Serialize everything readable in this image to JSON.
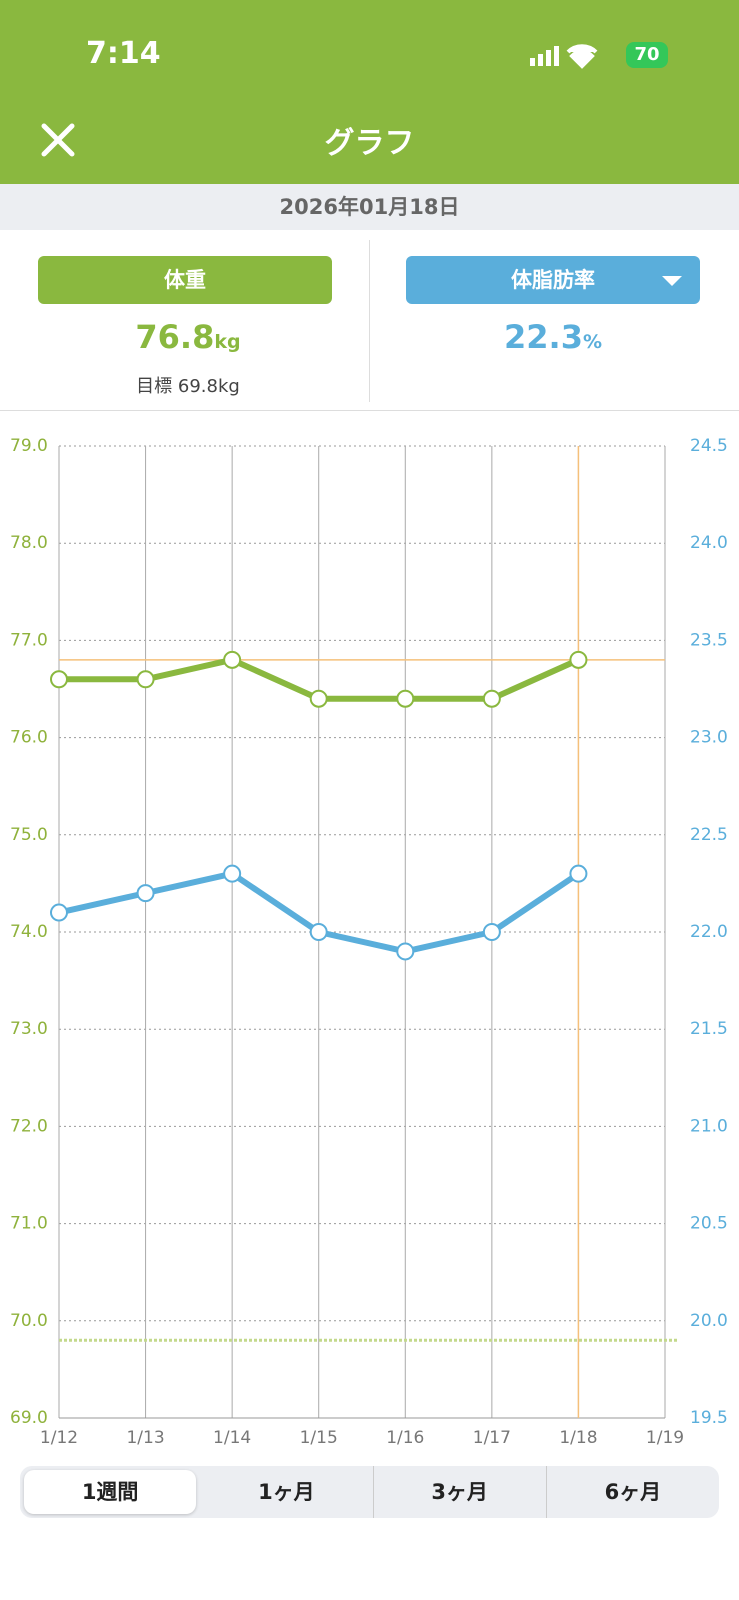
{
  "status_bar": {
    "time": "7:14",
    "battery": "70"
  },
  "header": {
    "title": "グラフ"
  },
  "date": "2026年01月18日",
  "panels": [
    {
      "label": "体重",
      "value": "76.8",
      "unit": "kg",
      "goal": "目標 69.8kg"
    },
    {
      "label": "体脂肪率",
      "value": "22.3",
      "unit": "%"
    }
  ],
  "chart_data": {
    "type": "line",
    "categories": [
      "1/12",
      "1/13",
      "1/14",
      "1/15",
      "1/16",
      "1/17",
      "1/18",
      "1/19"
    ],
    "series": [
      {
        "name": "体重",
        "color": "#8ab83f",
        "values": [
          76.6,
          76.6,
          76.8,
          76.4,
          76.4,
          76.4,
          76.8,
          null
        ]
      },
      {
        "name": "体脂肪率",
        "color": "#5aaedb",
        "axis": "y2",
        "values": [
          22.1,
          22.2,
          22.3,
          22.0,
          21.9,
          22.0,
          22.3,
          null
        ]
      }
    ],
    "target": 69.8,
    "ylim": [
      69,
      79
    ],
    "yticks": [
      {
        "value": 69,
        "label": "69.0"
      },
      {
        "value": 70,
        "label": "70.0"
      },
      {
        "value": 71,
        "label": "71.0"
      },
      {
        "value": 72,
        "label": "72.0"
      },
      {
        "value": 73,
        "label": "73.0"
      },
      {
        "value": 74,
        "label": "74.0"
      },
      {
        "value": 75,
        "label": "75.0"
      },
      {
        "value": 76,
        "label": "76.0"
      },
      {
        "value": 77,
        "label": "77.0"
      },
      {
        "value": 78,
        "label": "78.0"
      },
      {
        "value": 79,
        "label": "79.0"
      }
    ],
    "y2lim": [
      19.5,
      24.5
    ],
    "y2ticks": [
      19.5,
      {
        "value": 20,
        "label": "20.0"
      },
      20.5,
      {
        "value": 21,
        "label": "21.0"
      },
      21.5,
      {
        "value": 22,
        "label": "22.0"
      },
      22.5,
      {
        "value": 23,
        "label": "23.0"
      },
      23.5,
      {
        "value": 24,
        "label": "24.0"
      },
      24.5
    ],
    "grid": true
  },
  "tabs": [
    "1週間",
    "1ヶ月",
    "3ヶ月",
    "6ヶ月"
  ]
}
